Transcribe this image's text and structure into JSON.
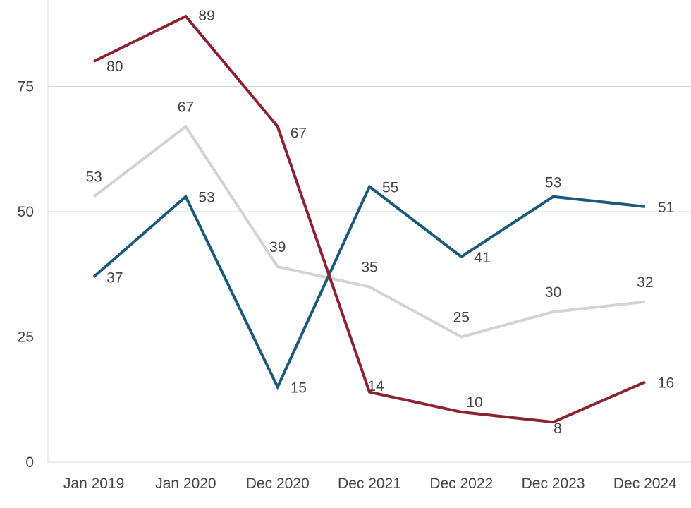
{
  "chart_data": {
    "type": "line",
    "title": "",
    "xlabel": "",
    "ylabel": "",
    "categories": [
      "Jan 2019",
      "Jan 2020",
      "Dec 2020",
      "Dec 2021",
      "Dec 2022",
      "Dec 2023",
      "Dec 2024"
    ],
    "ylim": [
      0,
      90
    ],
    "yticks": [
      0,
      25,
      50,
      75
    ],
    "grid": true,
    "legend": "none",
    "series": [
      {
        "color": "#d3d3d3",
        "values": [
          53,
          67,
          39,
          35,
          25,
          30,
          32
        ]
      },
      {
        "color": "#1b5a7a",
        "values": [
          37,
          53,
          15,
          55,
          41,
          53,
          51
        ]
      },
      {
        "color": "#8b2332",
        "values": [
          80,
          89,
          67,
          14,
          10,
          8,
          16
        ]
      }
    ]
  }
}
